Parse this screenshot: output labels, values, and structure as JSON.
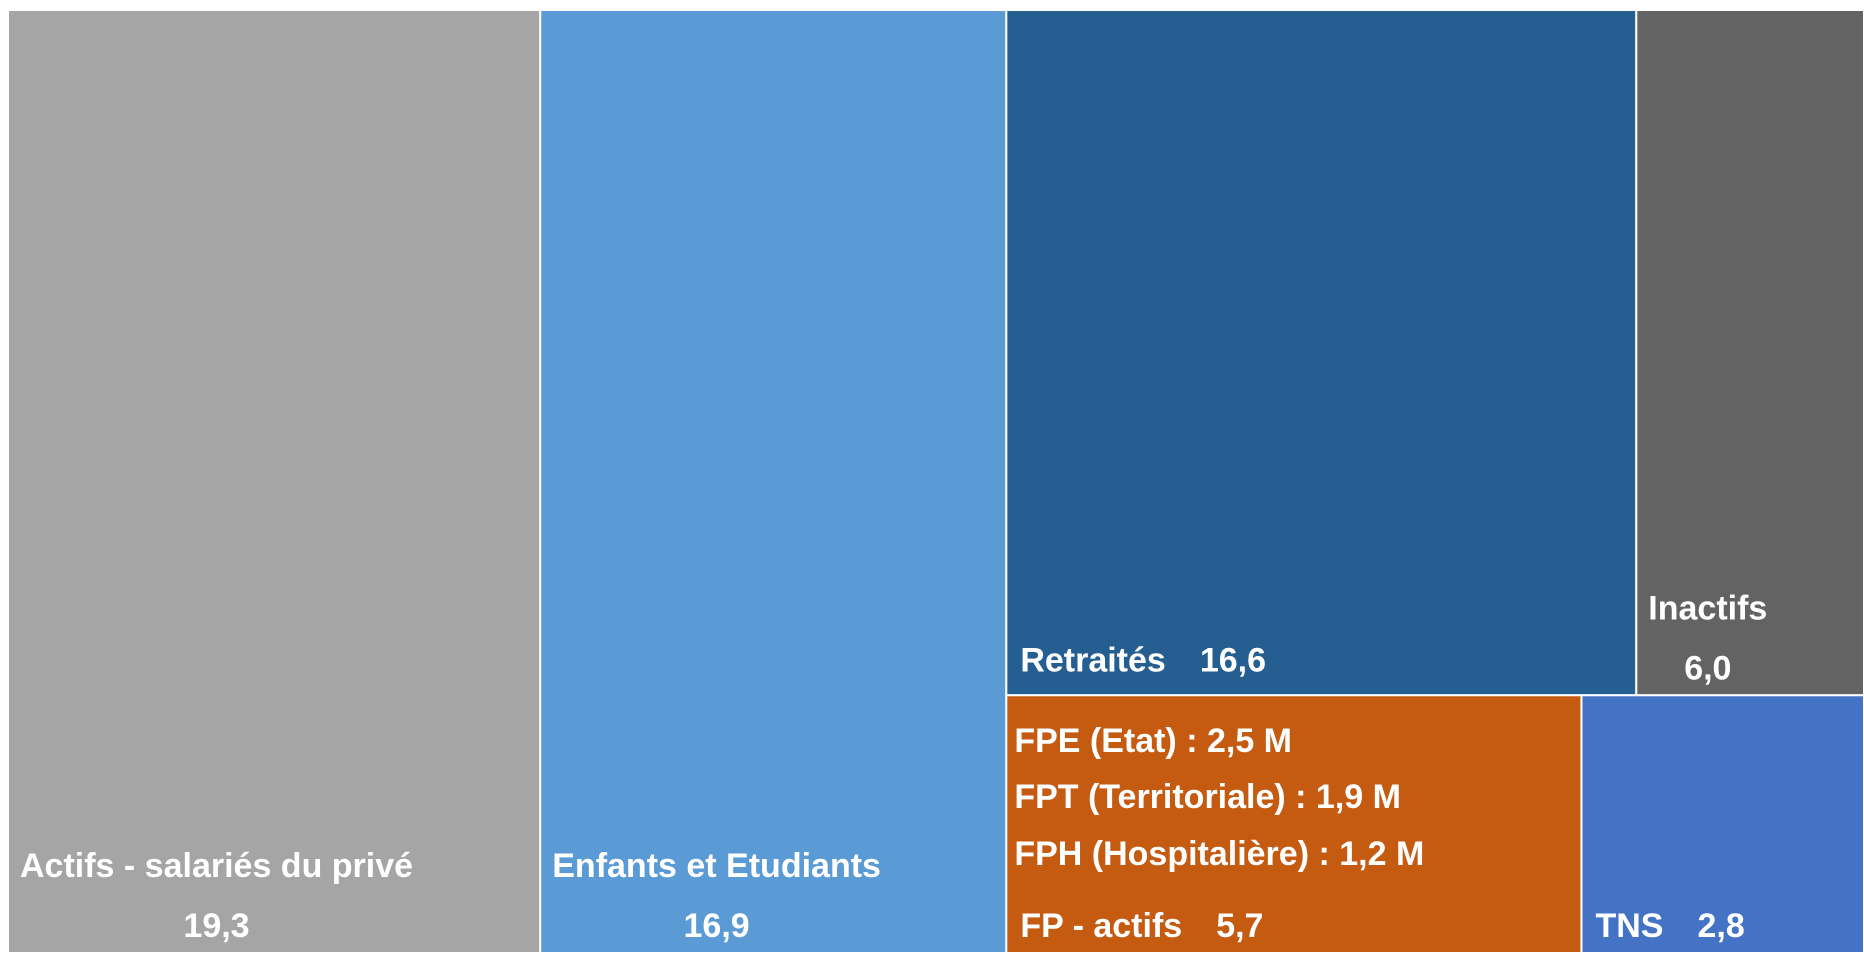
{
  "chart_data": {
    "type": "treemap",
    "categories": [
      "Actifs - salariés du privé",
      "Enfants et Etudiants",
      "Retraités",
      "Inactifs",
      "FP - actifs",
      "TNS"
    ],
    "values": [
      19.3,
      16.9,
      16.6,
      6.0,
      5.7,
      2.8
    ],
    "value_labels": [
      "19,3",
      "16,9",
      "16,6",
      "6,0",
      "5,7",
      "2,8"
    ],
    "colors": [
      "#a5a5a5",
      "#5b9bd5",
      "#255e91",
      "#636363",
      "#c55a11",
      "#4472c4"
    ],
    "annotations": [
      "FPE (Etat) : 2,5 M",
      "FPT (Territoriale) : 1,9 M",
      "FPH (Hospitalière) : 1,2 M"
    ]
  }
}
